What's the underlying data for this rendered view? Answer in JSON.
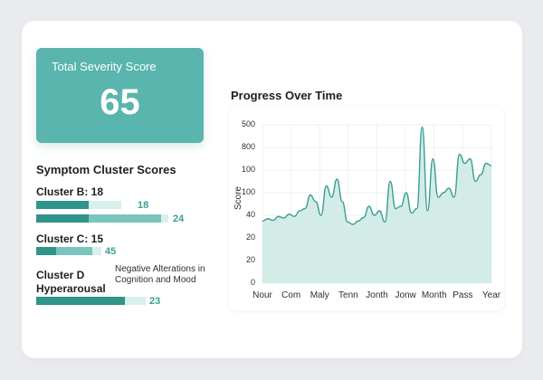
{
  "score_card": {
    "label": "Total Severity Score",
    "value": "65",
    "color": "#59b5ad"
  },
  "clusters": {
    "title": "Symptom Cluster Scores",
    "items": [
      {
        "label": "Cluster B: 18",
        "bars": [
          {
            "value": "18",
            "dark": 0.47,
            "light": 0
          },
          {
            "value": "24",
            "dark": 0.41,
            "light": 0.53
          }
        ]
      },
      {
        "label": "Cluster C: 15",
        "bars": [
          {
            "value": "45",
            "dark": 0.3,
            "light": 0.61
          }
        ]
      },
      {
        "label_line1": "Cluster D",
        "label_line2": "Hyperarousal",
        "note": "Negative Alterations in Cognition and Mood",
        "bars": [
          {
            "value": "23",
            "dark": 0.81,
            "light": 0
          }
        ]
      }
    ]
  },
  "chart_data": {
    "type": "area",
    "title": "Progress Over Time",
    "xlabel": "",
    "ylabel": "Score",
    "y_tick_labels": [
      "500",
      "800",
      "100",
      "100",
      "40",
      "20",
      "20",
      "0"
    ],
    "x_tick_labels": [
      "Nour",
      "Com",
      "Maly",
      "Tenn",
      "Jonth",
      "Jonw",
      "Month",
      "Pass",
      "Year"
    ],
    "grid": true,
    "color": "#3a9e94",
    "fill": "#cfeae6",
    "series_note": "values in grid-level units (0 = bottom, 7 = top gridline)",
    "values": [
      2.75,
      2.85,
      2.78,
      2.95,
      2.88,
      3.05,
      2.95,
      3.2,
      3.3,
      3.9,
      3.6,
      3.0,
      4.3,
      3.8,
      4.6,
      3.6,
      2.7,
      2.6,
      2.75,
      2.9,
      3.4,
      3.0,
      3.2,
      2.7,
      4.5,
      3.3,
      3.4,
      4.0,
      3.1,
      3.3,
      6.9,
      3.2,
      5.5,
      3.8,
      4.0,
      4.2,
      3.8,
      5.7,
      5.3,
      5.5,
      4.5,
      4.8,
      5.3,
      5.2
    ]
  }
}
